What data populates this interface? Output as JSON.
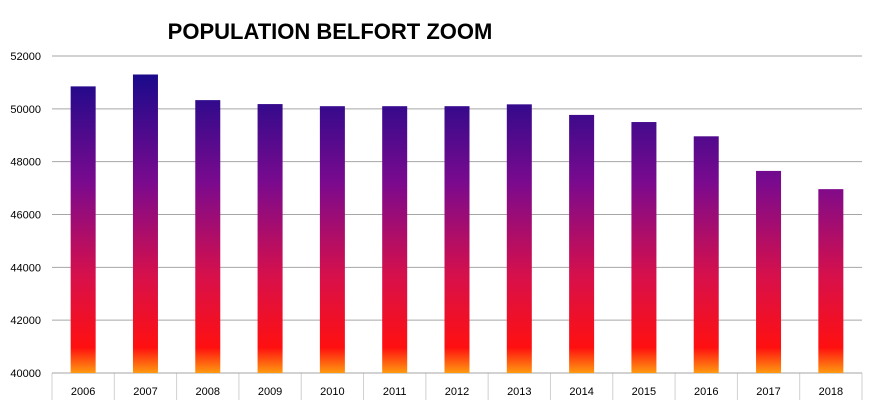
{
  "chart_data": {
    "type": "bar",
    "title": "POPULATION BELFORT ZOOM",
    "xlabel": "",
    "ylabel": "",
    "categories": [
      "2006",
      "2007",
      "2008",
      "2009",
      "2010",
      "2011",
      "2012",
      "2013",
      "2014",
      "2015",
      "2016",
      "2017",
      "2018"
    ],
    "values": [
      50850,
      51300,
      50330,
      50180,
      50100,
      50100,
      50100,
      50170,
      49770,
      49500,
      48960,
      47650,
      46960
    ],
    "ylim": [
      40000,
      52000
    ],
    "yticks": [
      "40000",
      "42000",
      "44000",
      "46000",
      "48000",
      "50000",
      "52000"
    ],
    "grid": true,
    "legend": "none",
    "colors": {
      "gradient_top": "#0a0a8a",
      "gradient_mid": "#7a0a8e",
      "gradient_low": "#d8104a",
      "gradient_red": "#ff1010",
      "gradient_bottom": "#ff9a10",
      "gridline": "#a6a6a6",
      "axis_text": "#000000"
    }
  }
}
